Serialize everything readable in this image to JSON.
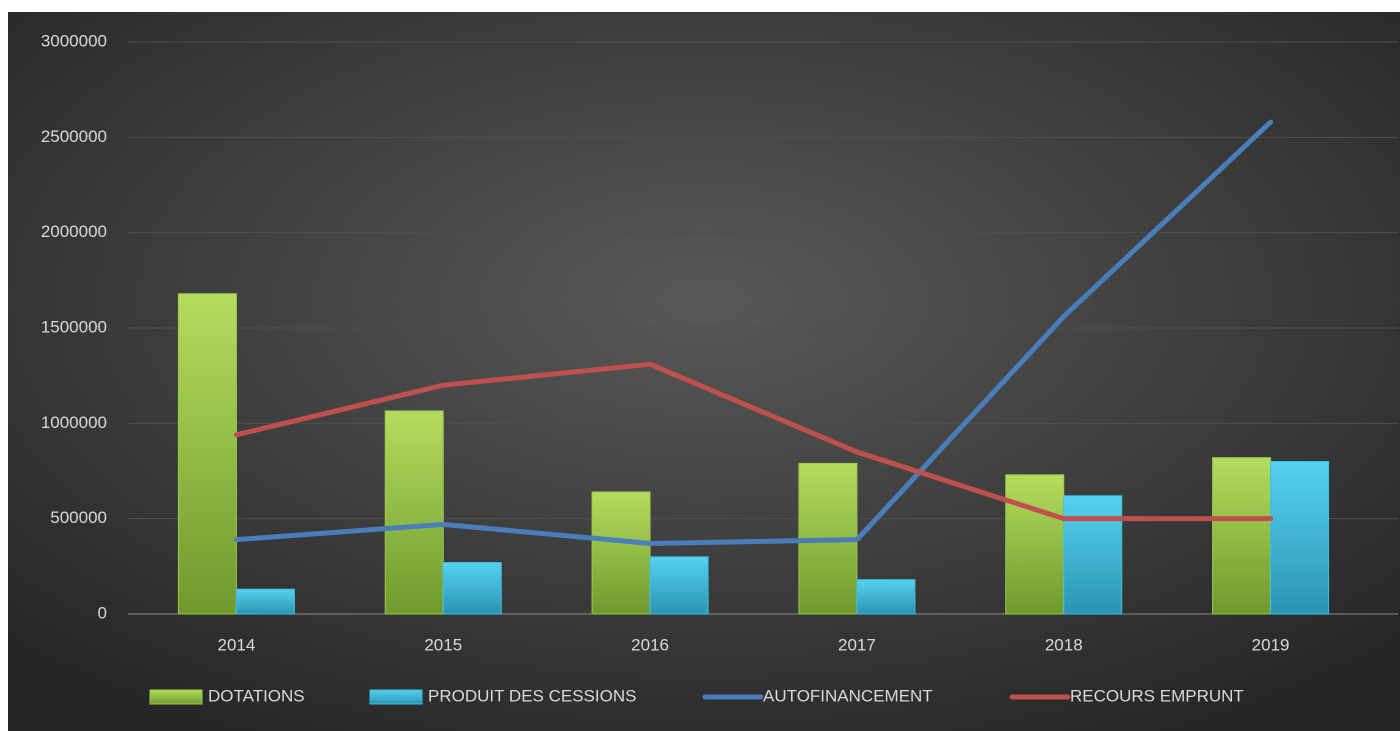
{
  "chart_data": {
    "type": "bar-line",
    "categories": [
      "2014",
      "2015",
      "2016",
      "2017",
      "2018",
      "2019"
    ],
    "series": [
      {
        "name": "DOTATIONS",
        "type": "bar",
        "color": "#9bc94a",
        "values": [
          1680000,
          1065000,
          640000,
          790000,
          730000,
          820000
        ]
      },
      {
        "name": "PRODUIT DES CESSIONS",
        "type": "bar",
        "color": "#3fc0dd",
        "values": [
          130000,
          270000,
          300000,
          180000,
          620000,
          800000
        ]
      },
      {
        "name": "AUTOFINANCEMENT",
        "type": "line",
        "color": "#4a7ebb",
        "values": [
          390000,
          470000,
          370000,
          390000,
          1560000,
          2580000
        ]
      },
      {
        "name": "RECOURS EMPRUNT",
        "type": "line",
        "color": "#c0504d",
        "values": [
          940000,
          1200000,
          1310000,
          850000,
          500000,
          500000
        ]
      }
    ],
    "ylim": [
      0,
      3000000
    ],
    "yticks": [
      0,
      500000,
      1000000,
      1500000,
      2000000,
      2500000,
      3000000
    ],
    "grid": true,
    "legend": "bottom"
  }
}
